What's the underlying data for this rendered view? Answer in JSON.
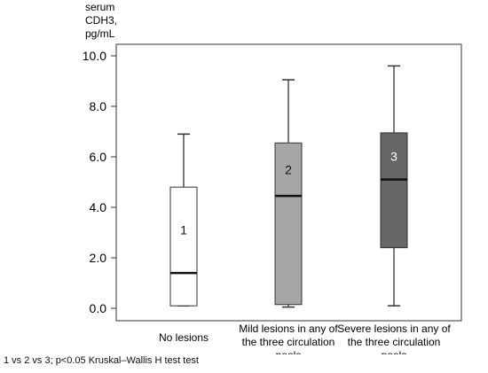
{
  "chart_data": {
    "type": "box",
    "ylabel": [
      "serum",
      "CDH3,",
      "pg/mL"
    ],
    "ylim": [
      0,
      10
    ],
    "yticks": [
      "0.0",
      "2.0",
      "4.0",
      "6.0",
      "8.0",
      "10.0"
    ],
    "grid": false,
    "categories": [
      [
        "No lesions"
      ],
      [
        "Mild lesions in any of",
        "the three circulation",
        "pools"
      ],
      [
        "Severe lesions in any of",
        "the three circulation",
        "pools"
      ]
    ],
    "boxes": [
      {
        "label": "1",
        "min": 0.1,
        "q1": 0.1,
        "median": 1.4,
        "q3": 4.8,
        "max": 6.9,
        "color": "#ffffff",
        "label_color": "#111111"
      },
      {
        "label": "2",
        "min": 0.05,
        "q1": 0.15,
        "median": 4.45,
        "q3": 6.55,
        "max": 9.05,
        "color": "#a6a6a6",
        "label_color": "#111111"
      },
      {
        "label": "3",
        "min": 0.1,
        "q1": 2.4,
        "median": 5.1,
        "q3": 6.95,
        "max": 9.6,
        "color": "#666666",
        "label_color": "#ffffff"
      }
    ]
  },
  "footnote": "1 vs 2 vs 3; p<0.05  Kruskal–Wallis H test  test"
}
